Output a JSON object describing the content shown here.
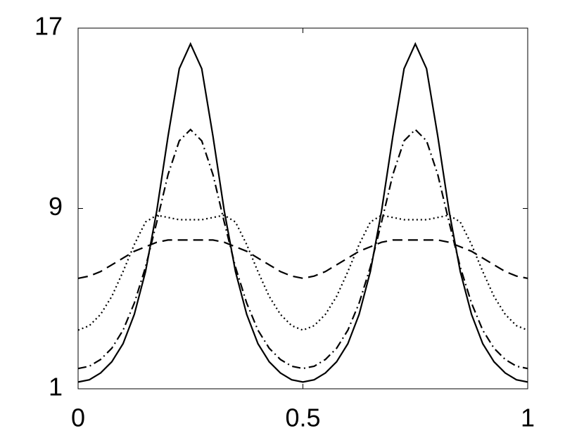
{
  "chart_data": {
    "type": "line",
    "x": [
      0,
      0.025,
      0.05,
      0.075,
      0.1,
      0.125,
      0.15,
      0.175,
      0.2,
      0.225,
      0.25,
      0.275,
      0.3,
      0.325,
      0.35,
      0.375,
      0.4,
      0.425,
      0.45,
      0.475,
      0.5,
      0.525,
      0.55,
      0.575,
      0.6,
      0.625,
      0.65,
      0.675,
      0.7,
      0.725,
      0.75,
      0.775,
      0.8,
      0.825,
      0.85,
      0.875,
      0.9,
      0.925,
      0.95,
      0.975,
      1
    ],
    "series": [
      {
        "color": "#000000",
        "style": "solid",
        "values": [
          1.3,
          1.4,
          1.7,
          2.2,
          3.0,
          4.3,
          6.2,
          8.9,
          12.2,
          15.2,
          16.3,
          15.2,
          12.2,
          8.9,
          6.2,
          4.3,
          3.0,
          2.2,
          1.7,
          1.4,
          1.3,
          1.4,
          1.7,
          2.2,
          3.0,
          4.3,
          6.2,
          8.9,
          12.2,
          15.2,
          16.3,
          15.2,
          12.2,
          8.9,
          6.2,
          4.3,
          3.0,
          2.2,
          1.7,
          1.4,
          1.3
        ]
      },
      {
        "color": "#000000",
        "style": "dashdot",
        "values": [
          1.9,
          2.0,
          2.3,
          2.8,
          3.6,
          4.8,
          6.4,
          8.4,
          10.5,
          12.0,
          12.5,
          12.0,
          10.5,
          8.4,
          6.4,
          4.8,
          3.6,
          2.8,
          2.3,
          2.0,
          1.9,
          2.0,
          2.3,
          2.8,
          3.6,
          4.8,
          6.4,
          8.4,
          10.5,
          12.0,
          12.5,
          12.0,
          10.5,
          8.4,
          6.4,
          4.8,
          3.6,
          2.8,
          2.3,
          2.0,
          1.9
        ]
      },
      {
        "color": "#000000",
        "style": "dotted",
        "values": [
          3.6,
          3.8,
          4.3,
          5.1,
          6.2,
          7.4,
          8.4,
          8.7,
          8.6,
          8.5,
          8.5,
          8.5,
          8.6,
          8.7,
          8.4,
          7.4,
          6.2,
          5.1,
          4.3,
          3.8,
          3.6,
          3.8,
          4.3,
          5.1,
          6.2,
          7.4,
          8.4,
          8.7,
          8.6,
          8.5,
          8.5,
          8.5,
          8.6,
          8.7,
          8.4,
          7.4,
          6.2,
          5.1,
          4.3,
          3.8,
          3.6
        ]
      },
      {
        "color": "#000000",
        "style": "dashed",
        "values": [
          5.9,
          6.0,
          6.2,
          6.5,
          6.8,
          7.1,
          7.3,
          7.5,
          7.6,
          7.6,
          7.6,
          7.6,
          7.6,
          7.5,
          7.3,
          7.1,
          6.8,
          6.5,
          6.2,
          6.0,
          5.9,
          6.0,
          6.2,
          6.5,
          6.8,
          7.1,
          7.3,
          7.5,
          7.6,
          7.6,
          7.6,
          7.6,
          7.6,
          7.5,
          7.3,
          7.1,
          6.8,
          6.5,
          6.2,
          6.0,
          5.9
        ]
      }
    ],
    "xlim": [
      0,
      1
    ],
    "xticks": [
      0,
      0.5,
      1
    ],
    "ylim": [
      1,
      17
    ],
    "yticks": [
      1,
      9,
      17
    ]
  }
}
